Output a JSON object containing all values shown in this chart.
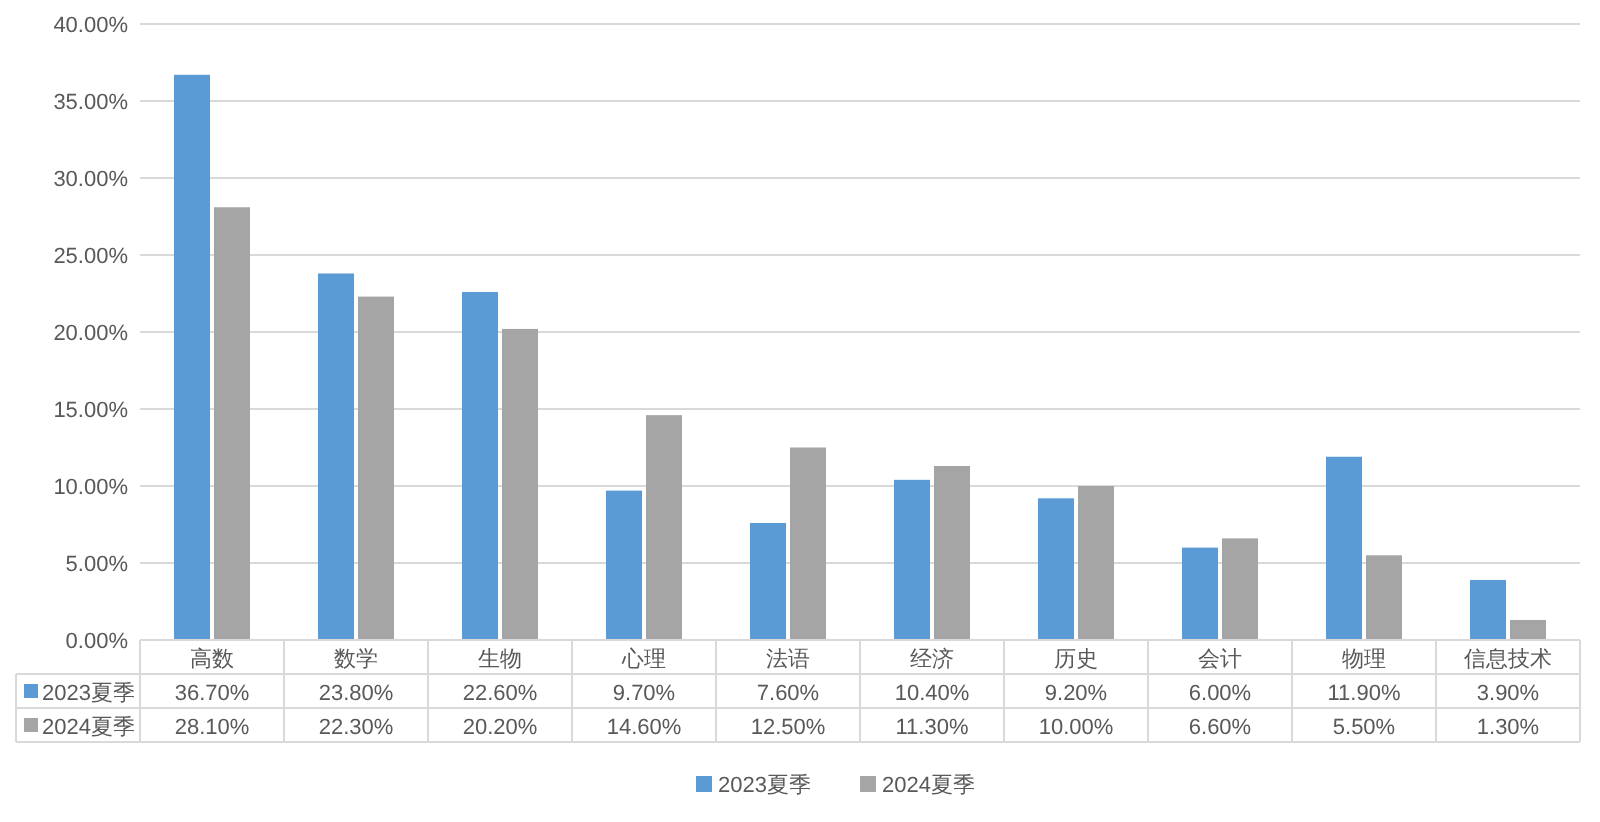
{
  "chart_data": {
    "type": "bar",
    "categories": [
      "高数",
      "数学",
      "生物",
      "心理",
      "法语",
      "经济",
      "历史",
      "会计",
      "物理",
      "信息技术"
    ],
    "series": [
      {
        "name": "2023夏季",
        "color": "#5b9bd5",
        "values": [
          36.7,
          23.8,
          22.6,
          9.7,
          7.6,
          10.4,
          9.2,
          6.0,
          11.9,
          3.9
        ],
        "value_labels": [
          "36.70%",
          "23.80%",
          "22.60%",
          "9.70%",
          "7.60%",
          "10.40%",
          "9.20%",
          "6.00%",
          "11.90%",
          "3.90%"
        ]
      },
      {
        "name": "2024夏季",
        "color": "#a5a5a5",
        "values": [
          28.1,
          22.3,
          20.2,
          14.6,
          12.5,
          11.3,
          10.0,
          6.6,
          5.5,
          1.3
        ],
        "value_labels": [
          "28.10%",
          "22.30%",
          "20.20%",
          "14.60%",
          "12.50%",
          "11.30%",
          "10.00%",
          "6.60%",
          "5.50%",
          "1.30%"
        ]
      }
    ],
    "ylim": [
      0,
      40
    ],
    "yticks": [
      {
        "value": 0,
        "label": "0.00%"
      },
      {
        "value": 5,
        "label": "5.00%"
      },
      {
        "value": 10,
        "label": "10.00%"
      },
      {
        "value": 15,
        "label": "15.00%"
      },
      {
        "value": 20,
        "label": "20.00%"
      },
      {
        "value": 25,
        "label": "25.00%"
      },
      {
        "value": 30,
        "label": "30.00%"
      },
      {
        "value": 35,
        "label": "35.00%"
      },
      {
        "value": 40,
        "label": "40.00%"
      }
    ],
    "grid": "y",
    "legend": "bottom"
  }
}
